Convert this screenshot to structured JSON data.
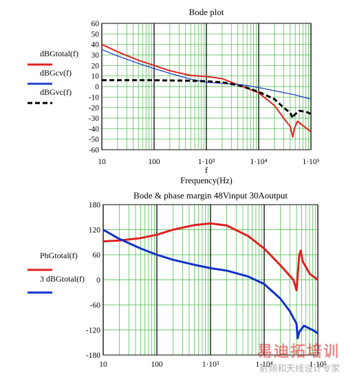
{
  "chart_data": [
    {
      "type": "line",
      "title": "Bode plot",
      "xlabel_var": "f",
      "xlabel": "Frequency(Hz)",
      "xscale": "log",
      "xlim": [
        10,
        100000
      ],
      "x_ticks": [
        "10",
        "100",
        "1·10³",
        "1·10⁴",
        "1·10⁵"
      ],
      "ylim": [
        -60,
        60
      ],
      "y_ticks": [
        60,
        50,
        40,
        30,
        20,
        10,
        0,
        -10,
        -20,
        -30,
        -40,
        -50,
        -60
      ],
      "grid": true,
      "legend_position": "left",
      "series": [
        {
          "name": "dBGtotal(f)",
          "color": "#e02020",
          "style": "solid",
          "points": [
            [
              10,
              40
            ],
            [
              20,
              33
            ],
            [
              50,
              25
            ],
            [
              100,
              20
            ],
            [
              200,
              15
            ],
            [
              500,
              10.5
            ],
            [
              1000,
              9.5
            ],
            [
              2000,
              7.5
            ],
            [
              3000,
              4
            ],
            [
              5000,
              0
            ],
            [
              10000,
              -6
            ],
            [
              20000,
              -18
            ],
            [
              30000,
              -30
            ],
            [
              40000,
              -38
            ],
            [
              45000,
              -48
            ],
            [
              48000,
              -40
            ],
            [
              55000,
              -33
            ],
            [
              70000,
              -37
            ],
            [
              100000,
              -43
            ]
          ]
        },
        {
          "name": "dBGcv(f)",
          "color": "#2040d0",
          "style": "solid",
          "points": [
            [
              10,
              35
            ],
            [
              20,
              29
            ],
            [
              50,
              22
            ],
            [
              100,
              17
            ],
            [
              200,
              12.5
            ],
            [
              500,
              7
            ],
            [
              1000,
              4
            ],
            [
              2000,
              3
            ],
            [
              5000,
              1.5
            ],
            [
              10000,
              -1
            ],
            [
              20000,
              -4
            ],
            [
              50000,
              -8
            ],
            [
              100000,
              -12
            ]
          ]
        },
        {
          "name": "dBGvc(f)",
          "color": "#000000",
          "style": "dashed",
          "points": [
            [
              10,
              6
            ],
            [
              100,
              6
            ],
            [
              500,
              5.5
            ],
            [
              1000,
              5
            ],
            [
              2000,
              4
            ],
            [
              3000,
              2.5
            ],
            [
              5000,
              0
            ],
            [
              10000,
              -5
            ],
            [
              20000,
              -12
            ],
            [
              30000,
              -20
            ],
            [
              40000,
              -25
            ],
            [
              45000,
              -30
            ],
            [
              48000,
              -27
            ],
            [
              60000,
              -23
            ],
            [
              80000,
              -24
            ],
            [
              100000,
              -26
            ]
          ]
        }
      ]
    },
    {
      "type": "line",
      "title": "Bode & phase margin 48Vinput 30Aoutput",
      "xscale": "log",
      "xlim": [
        10,
        100000
      ],
      "x_ticks": [
        "10",
        "100",
        "1·10³",
        "1·10⁴",
        "1·10⁵"
      ],
      "ylim": [
        -180,
        180
      ],
      "y_ticks": [
        180,
        120,
        60,
        0,
        -60,
        -120,
        -180
      ],
      "grid": true,
      "legend_position": "left",
      "series": [
        {
          "name": "PhGtotal(f)",
          "color": "#e02020",
          "style": "solid",
          "points": [
            [
              10,
              92
            ],
            [
              20,
              94
            ],
            [
              50,
              100
            ],
            [
              100,
              108
            ],
            [
              200,
              120
            ],
            [
              500,
              131
            ],
            [
              1000,
              135
            ],
            [
              2000,
              130
            ],
            [
              5000,
              105
            ],
            [
              10000,
              75
            ],
            [
              20000,
              35
            ],
            [
              35000,
              0
            ],
            [
              40000,
              -25
            ],
            [
              45000,
              60
            ],
            [
              48000,
              70
            ],
            [
              52000,
              45
            ],
            [
              70000,
              15
            ],
            [
              100000,
              0
            ]
          ]
        },
        {
          "name": "3 dBGtotal(f)",
          "color": "#1030c8",
          "style": "solid",
          "points": [
            [
              10,
              120
            ],
            [
              20,
              98
            ],
            [
              50,
              75
            ],
            [
              100,
              60
            ],
            [
              200,
              48
            ],
            [
              500,
              36
            ],
            [
              1000,
              28
            ],
            [
              2000,
              22
            ],
            [
              5000,
              8
            ],
            [
              10000,
              -10
            ],
            [
              20000,
              -45
            ],
            [
              30000,
              -75
            ],
            [
              40000,
              -105
            ],
            [
              42000,
              -140
            ],
            [
              45000,
              -125
            ],
            [
              55000,
              -110
            ],
            [
              80000,
              -120
            ],
            [
              100000,
              -128
            ]
          ]
        }
      ]
    }
  ],
  "watermark": {
    "logo_text": "易迪拓培训",
    "tagline": "射频和天线设计专家"
  }
}
